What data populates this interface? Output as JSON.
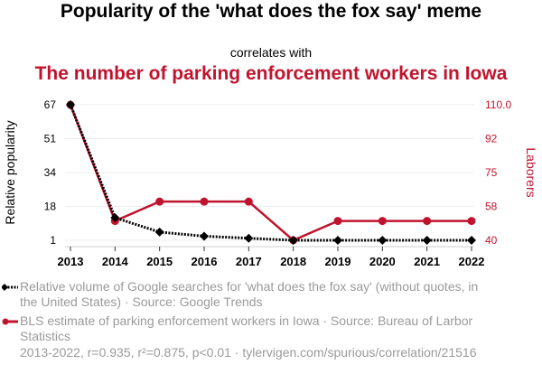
{
  "header": {
    "title": "Popularity of the 'what does the fox say' meme",
    "subtitle": "correlates with",
    "title2": "The number of parking enforcement workers in Iowa"
  },
  "colors": {
    "series1": "#000000",
    "series2": "#c0142e",
    "grid": "#eeeeee",
    "legend_text": "#9a9a9a"
  },
  "chart_data": {
    "type": "line",
    "title": "Popularity of the 'what does the fox say' meme correlates with The number of parking enforcement workers in Iowa",
    "x": [
      "2013",
      "2014",
      "2015",
      "2016",
      "2017",
      "2018",
      "2019",
      "2020",
      "2021",
      "2022"
    ],
    "xlabel": "",
    "ylabel": "Relative popularity",
    "y2label": "Laborers",
    "ylim": [
      1,
      67
    ],
    "y2lim": [
      40,
      110
    ],
    "yticks": [
      "1",
      "18",
      "34",
      "51",
      "67"
    ],
    "y2ticks": [
      "40",
      "58",
      "75",
      "92",
      "110.0"
    ],
    "grid": true,
    "legend_position": "bottom-left",
    "series": [
      {
        "name": "Relative volume of Google searches for 'what does the fox say' (without quotes, in the United States) · Source: Google Trends",
        "axis": "left",
        "style": "dotted-diamond",
        "values": [
          67,
          12,
          5,
          3,
          2,
          1,
          1,
          1,
          1,
          1
        ]
      },
      {
        "name": "BLS estimate of parking enforcement workers in Iowa · Source: Bureau of Larbor Statistics",
        "axis": "right",
        "style": "solid-circle",
        "values": [
          110,
          50,
          60,
          60,
          60,
          40,
          50,
          50,
          50,
          50
        ]
      }
    ]
  },
  "legend": {
    "series1": "Relative volume of Google searches for 'what does the fox say' (without quotes, in the United States) · Source: Google Trends",
    "series2": "BLS estimate of parking enforcement workers in Iowa · Source: Bureau of Larbor Statistics"
  },
  "footer": "2013-2022, r=0.935, r²=0.875, p<0.01 · tylervigen.com/spurious/correlation/21516"
}
